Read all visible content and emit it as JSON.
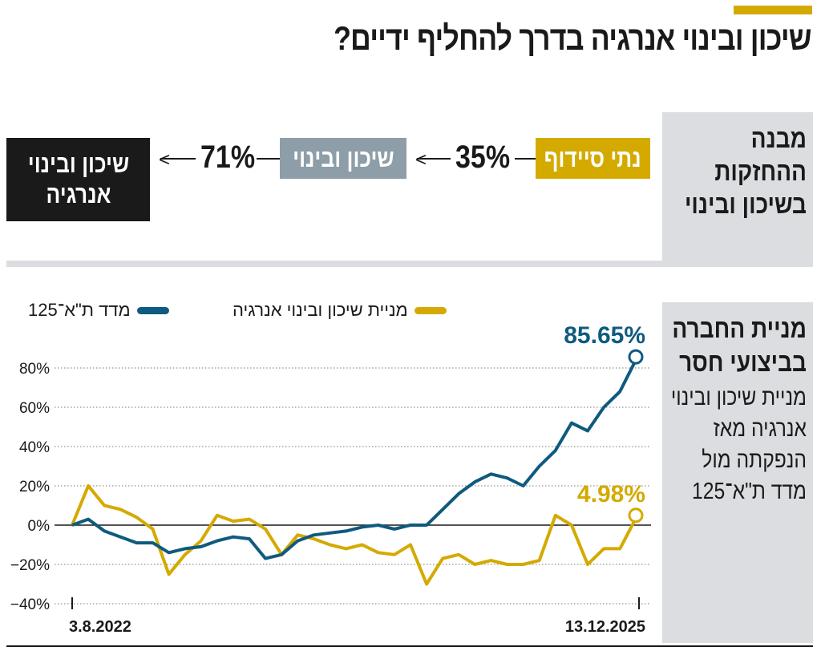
{
  "title": "שיכון ובינוי אנרגיה בדרך להחליף ידיים?",
  "colors": {
    "accent": "#d4aa00",
    "company": "#d4aa00",
    "index": "#0f5a7f",
    "mid_box": "#8e9ea8",
    "dark_box": "#1b1a1a",
    "panel": "#dcdde0"
  },
  "ownership": {
    "label": "מבנה ההחזקות בשיכון ובינוי",
    "chain": [
      {
        "name": "נתי סיידוף"
      },
      {
        "pct": "35%"
      },
      {
        "name": "שיכון ובינוי"
      },
      {
        "pct": "71%"
      },
      {
        "name": "שיכון ובינוי אנרגיה"
      }
    ]
  },
  "performance": {
    "label": "מניית החברה בביצועי חסר",
    "description": "מניית שיכון ובינוי אנרגיה מאז הנפקתה מול מדד ת\"א־125"
  },
  "chart_data": {
    "type": "line",
    "yticks": [
      "80%",
      "60%",
      "40%",
      "20%",
      "0%",
      "−20%",
      "−40%"
    ],
    "ytick_values": [
      80,
      60,
      40,
      20,
      0,
      -20,
      -40
    ],
    "ylim": [
      -40,
      85
    ],
    "xlabels": [
      "3.8.2022",
      "13.12.2025"
    ],
    "grid": true,
    "legend_placement": "top",
    "x": [
      "2022-08-03",
      "2022-09-07",
      "2022-10-12",
      "2022-11-16",
      "2022-12-21",
      "2023-01-25",
      "2023-03-01",
      "2023-04-05",
      "2023-05-10",
      "2023-06-14",
      "2023-07-19",
      "2023-08-23",
      "2023-09-27",
      "2023-11-01",
      "2023-12-06",
      "2024-01-10",
      "2024-02-14",
      "2024-03-20",
      "2024-04-24",
      "2024-05-29",
      "2024-07-03",
      "2024-08-07",
      "2024-09-11",
      "2024-10-16",
      "2024-11-20",
      "2024-12-25",
      "2025-01-29",
      "2025-03-05",
      "2025-04-09",
      "2025-05-14",
      "2025-06-18",
      "2025-07-23",
      "2025-08-27",
      "2025-10-01",
      "2025-11-05",
      "2025-12-13"
    ],
    "series": [
      {
        "name": "מדד ת\"א־125",
        "color": "#0f5a7f",
        "end_label": "85.65%",
        "values": [
          0,
          3,
          -3,
          -6,
          -9,
          -9,
          -14,
          -12,
          -11,
          -8,
          -6,
          -7,
          -17,
          -15,
          -8,
          -5,
          -4,
          -3,
          -1,
          0,
          -2,
          0,
          0,
          8,
          16,
          22,
          26,
          24,
          20,
          30,
          38,
          52,
          48,
          60,
          68,
          85.65
        ]
      },
      {
        "name": "מניית שיכון ובינוי אנרגיה",
        "color": "#d4aa00",
        "end_label": "4.98%",
        "values": [
          0,
          20,
          10,
          8,
          4,
          -2,
          -25,
          -15,
          -8,
          5,
          2,
          3,
          -2,
          -15,
          -5,
          -7,
          -10,
          -12,
          -10,
          -14,
          -15,
          -10,
          -30,
          -17,
          -15,
          -20,
          -18,
          -20,
          -20,
          -18,
          5,
          0,
          -20,
          -12,
          -12,
          4.98
        ]
      }
    ]
  }
}
